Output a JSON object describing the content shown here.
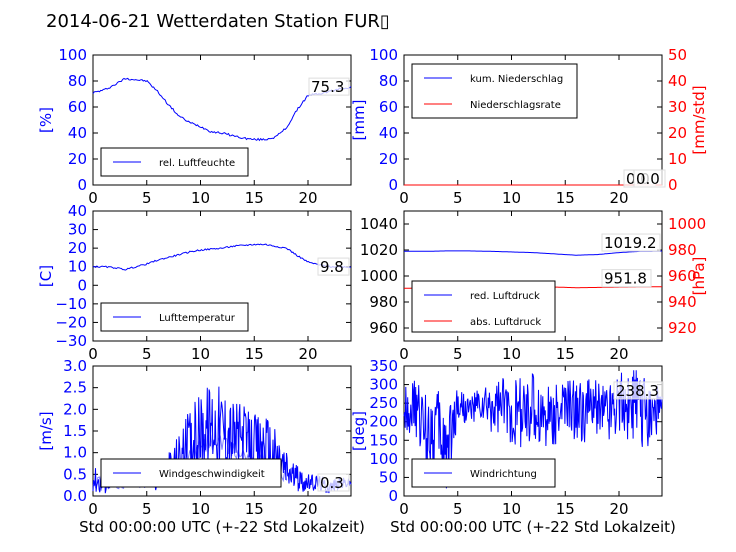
{
  "figure_title": "2014-06-21 Wetterdaten Station FUR▯",
  "colors": {
    "blue": "#0000ff",
    "red": "#ff0000",
    "lightblue": "#8080ff",
    "black": "#000000"
  },
  "chart_data": [
    {
      "id": "humidity",
      "type": "line",
      "xlabel": "",
      "ylabel": "[%]",
      "xlim": [
        0,
        24
      ],
      "ylim": [
        0,
        100
      ],
      "xticks": [
        "0",
        "5",
        "10",
        "15",
        "20"
      ],
      "yticks": [
        "0",
        "20",
        "40",
        "60",
        "80",
        "100"
      ],
      "series": [
        {
          "name": "rel. Luftfeuchte",
          "color": "#0000ff",
          "x": [
            0,
            1,
            2,
            3,
            4,
            5,
            6,
            7,
            8,
            9,
            10,
            11,
            12,
            13,
            14,
            15,
            16,
            17,
            18,
            19,
            20,
            21,
            22,
            23,
            24
          ],
          "y": [
            71,
            73,
            77,
            82,
            81,
            80,
            72,
            62,
            53,
            48,
            45,
            41,
            40,
            38,
            36,
            35,
            35,
            37,
            44,
            58,
            69,
            70,
            72,
            74,
            75.3
          ]
        }
      ],
      "value_label": "75.3",
      "legend_loc": "lower center"
    },
    {
      "id": "precip",
      "type": "line",
      "xlabel": "",
      "ylabel": "[mm]",
      "ylabel_right": "[mm/std]",
      "xlim": [
        0,
        24
      ],
      "ylim": [
        0,
        100
      ],
      "ylim_right": [
        0,
        50
      ],
      "xticks": [
        "0",
        "5",
        "10",
        "15",
        "20"
      ],
      "yticks": [
        "0",
        "20",
        "40",
        "60",
        "80",
        "100"
      ],
      "yticks_right": [
        "0",
        "10",
        "20",
        "30",
        "40",
        "50"
      ],
      "series": [
        {
          "name": "kum. Niederschlag",
          "color": "#0000ff",
          "axis": "left",
          "x": [
            0,
            24
          ],
          "y": [
            0,
            0
          ]
        },
        {
          "name": "Niederschlagsrate",
          "color": "#ff0000",
          "axis": "right",
          "x": [
            0,
            24
          ],
          "y": [
            0,
            0
          ]
        }
      ],
      "value_labels": [
        "0.0",
        "0.0"
      ],
      "legend_loc": "upper left"
    },
    {
      "id": "temperature",
      "type": "line",
      "xlabel": "",
      "ylabel": "[C]",
      "xlim": [
        0,
        24
      ],
      "ylim": [
        -30,
        40
      ],
      "xticks": [
        "0",
        "5",
        "10",
        "15",
        "20"
      ],
      "yticks": [
        "−30",
        "−20",
        "−10",
        "0",
        "10",
        "20",
        "30",
        "40"
      ],
      "series": [
        {
          "name": "Lufttemperatur",
          "color": "#0000ff",
          "x": [
            0,
            1,
            2,
            3,
            4,
            5,
            6,
            7,
            8,
            9,
            10,
            11,
            12,
            13,
            14,
            15,
            16,
            17,
            18,
            19,
            20,
            21,
            22,
            23,
            24
          ],
          "y": [
            10,
            10,
            9.5,
            8.5,
            10,
            11.5,
            13.5,
            15,
            16.5,
            18,
            19,
            19.5,
            20,
            21,
            21.5,
            22,
            22,
            21,
            20,
            16,
            12.5,
            11,
            10,
            10,
            9.8
          ]
        }
      ],
      "value_label": "9.8",
      "legend_loc": "lower center"
    },
    {
      "id": "pressure",
      "type": "line",
      "xlabel": "",
      "ylabel": "",
      "ylabel_right": "[hPa]",
      "xlim": [
        0,
        24
      ],
      "ylim": [
        950,
        1050
      ],
      "ylim_right": [
        910,
        1010
      ],
      "xticks": [
        "0",
        "5",
        "10",
        "15",
        "20"
      ],
      "yticks": [
        "960",
        "980",
        "1000",
        "1020",
        "1040"
      ],
      "yticks_right": [
        "920",
        "940",
        "960",
        "980",
        "1000"
      ],
      "series": [
        {
          "name": "red. Luftdruck",
          "color": "#0000ff",
          "axis": "left",
          "x": [
            0,
            2,
            4,
            6,
            8,
            10,
            12,
            14,
            16,
            18,
            20,
            22,
            24
          ],
          "y": [
            1019,
            1019,
            1019.3,
            1019.3,
            1019,
            1018.5,
            1018,
            1017,
            1016,
            1016.5,
            1018,
            1019,
            1019.2
          ]
        },
        {
          "name": "abs. Luftdruck",
          "color": "#ff0000",
          "axis": "right",
          "x": [
            0,
            2,
            4,
            6,
            8,
            10,
            12,
            14,
            16,
            18,
            20,
            22,
            24
          ],
          "y": [
            950.5,
            951,
            951.5,
            952,
            952.5,
            952.3,
            952,
            951.5,
            951,
            951.2,
            951.5,
            951.7,
            951.8
          ]
        }
      ],
      "value_labels": [
        "1019.2",
        "951.8"
      ],
      "legend_loc": "lower left"
    },
    {
      "id": "wind",
      "type": "line",
      "xlabel": "Std 00:00:00 UTC (+-22 Std Lokalzeit)",
      "ylabel": "[m/s]",
      "xlim": [
        0,
        24
      ],
      "ylim": [
        0,
        3
      ],
      "xticks": [
        "0",
        "5",
        "10",
        "15",
        "20"
      ],
      "yticks": [
        "0.0",
        "0.5",
        "1.0",
        "1.5",
        "2.0",
        "2.5",
        "3.0"
      ],
      "series": [
        {
          "name": "Windgeschwindigkeit",
          "color": "#0000ff",
          "x": [
            0,
            1,
            2,
            3,
            4,
            5,
            6,
            7,
            8,
            9,
            10,
            11,
            12,
            13,
            14,
            15,
            16,
            17,
            18,
            19,
            20,
            21,
            22,
            23,
            24
          ],
          "y": [
            0.4,
            0.3,
            0.5,
            0.4,
            0.5,
            0.5,
            0.4,
            0.6,
            0.9,
            1.2,
            1.5,
            1.7,
            1.6,
            1.4,
            1.3,
            1.1,
            1.2,
            0.9,
            0.6,
            0.4,
            0.3,
            0.3,
            0.2,
            0.3,
            0.3
          ],
          "envelope": [
            0.3,
            0.3,
            0.2,
            0.2,
            0.2,
            0.25,
            0.3,
            0.4,
            0.6,
            0.8,
            0.9,
            1.0,
            1.0,
            0.9,
            0.8,
            0.8,
            0.8,
            0.7,
            0.5,
            0.3,
            0.2,
            0.2,
            0.15,
            0.15,
            0.1
          ]
        }
      ],
      "value_label": "0.3",
      "legend_loc": "lower center"
    },
    {
      "id": "direction",
      "type": "line",
      "xlabel": "Std 00:00:00 UTC (+-22 Std Lokalzeit)",
      "ylabel": "[deg]",
      "xlim": [
        0,
        24
      ],
      "ylim": [
        0,
        360
      ],
      "xticks": [
        "0",
        "5",
        "10",
        "15",
        "20"
      ],
      "yticks": [
        "0",
        "50",
        "100",
        "150",
        "200",
        "250",
        "300",
        "350"
      ],
      "series": [
        {
          "name": "Windrichtung",
          "color": "#0000ff",
          "x": [
            0,
            1,
            2,
            3,
            4,
            5,
            6,
            7,
            8,
            9,
            10,
            11,
            12,
            13,
            14,
            15,
            16,
            17,
            18,
            19,
            20,
            21,
            22,
            23,
            24
          ],
          "y": [
            250,
            240,
            190,
            200,
            130,
            260,
            240,
            250,
            240,
            250,
            240,
            230,
            240,
            220,
            230,
            250,
            230,
            240,
            250,
            240,
            270,
            250,
            240,
            240,
            238.3
          ],
          "envelope": [
            60,
            80,
            110,
            110,
            120,
            60,
            40,
            50,
            70,
            80,
            100,
            100,
            100,
            100,
            90,
            80,
            90,
            90,
            80,
            90,
            90,
            100,
            110,
            110,
            60
          ]
        }
      ],
      "value_label": "238.3",
      "legend_loc": "lower left"
    }
  ]
}
